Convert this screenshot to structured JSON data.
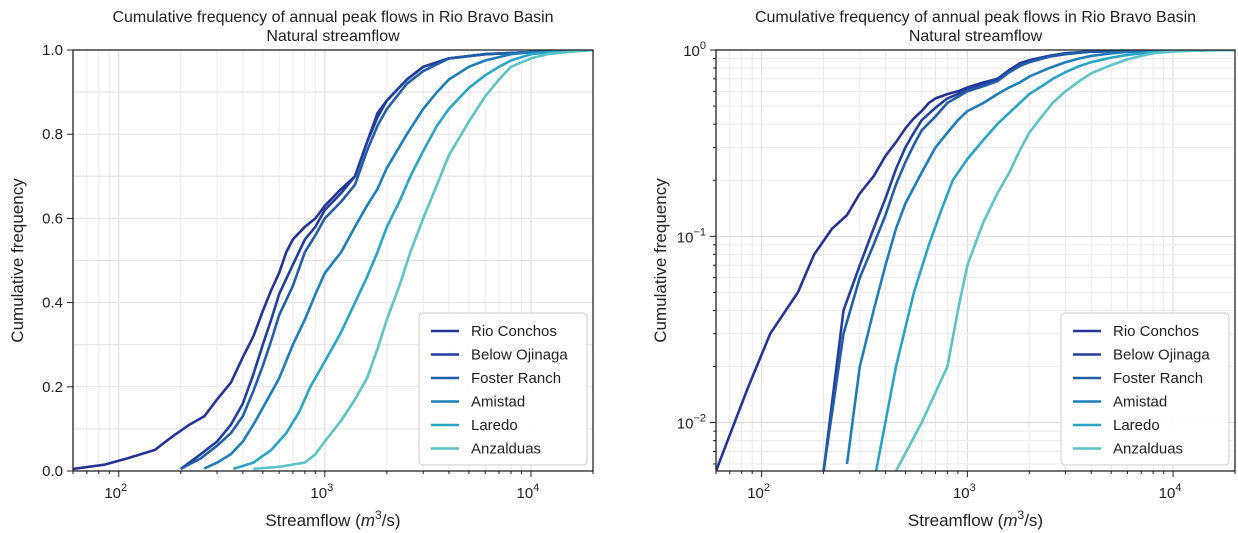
{
  "chart_data": [
    {
      "type": "line",
      "title": "Cumulative frequency of annual peak flows in Rio Bravo Basin",
      "subtitle": "Natural streamflow",
      "xlabel": "Streamflow (m³/s)",
      "ylabel": "Cumulative frequency",
      "xscale": "log",
      "yscale": "linear",
      "xlim": [
        60,
        20000
      ],
      "ylim": [
        0,
        1
      ],
      "grid": true,
      "legend_position": "bottom-right",
      "x_ticks": [
        {
          "base": "10",
          "exp": "2"
        },
        {
          "base": "10",
          "exp": "3"
        },
        {
          "base": "10",
          "exp": "4"
        }
      ],
      "y_ticks": [
        "0.0",
        "0.2",
        "0.4",
        "0.6",
        "0.8",
        "1.0"
      ],
      "series": [
        {
          "name": "Rio Conchos",
          "color": "#253494",
          "x": [
            60,
            85,
            110,
            150,
            180,
            220,
            260,
            300,
            350,
            400,
            450,
            500,
            550,
            600,
            650,
            700,
            800,
            900,
            1000,
            1200,
            1400,
            1600,
            1800,
            2000,
            2500,
            3000,
            4000,
            6000,
            10000,
            20000
          ],
          "y": [
            0.005,
            0.015,
            0.03,
            0.05,
            0.08,
            0.11,
            0.13,
            0.17,
            0.21,
            0.27,
            0.32,
            0.38,
            0.43,
            0.47,
            0.52,
            0.55,
            0.58,
            0.6,
            0.63,
            0.67,
            0.7,
            0.78,
            0.85,
            0.88,
            0.93,
            0.96,
            0.98,
            0.99,
            0.995,
            1.0
          ]
        },
        {
          "name": "Below Ojinaga",
          "color": "#233f9e",
          "x": [
            200,
            250,
            300,
            350,
            400,
            450,
            500,
            550,
            600,
            700,
            800,
            900,
            1000,
            1200,
            1400,
            1600,
            1800,
            2000,
            2500,
            3000,
            4000,
            6000,
            10000,
            20000
          ],
          "y": [
            0.005,
            0.04,
            0.07,
            0.11,
            0.16,
            0.23,
            0.3,
            0.36,
            0.42,
            0.49,
            0.55,
            0.58,
            0.62,
            0.66,
            0.7,
            0.78,
            0.84,
            0.88,
            0.93,
            0.96,
            0.98,
            0.99,
            0.995,
            1.0
          ]
        },
        {
          "name": "Foster Ranch",
          "color": "#225ea8",
          "x": [
            200,
            250,
            300,
            350,
            400,
            450,
            500,
            550,
            600,
            700,
            800,
            900,
            1000,
            1200,
            1400,
            1600,
            1800,
            2000,
            2500,
            3000,
            4000,
            6000,
            10000,
            20000
          ],
          "y": [
            0.005,
            0.03,
            0.06,
            0.09,
            0.13,
            0.19,
            0.25,
            0.31,
            0.37,
            0.44,
            0.52,
            0.56,
            0.6,
            0.64,
            0.68,
            0.76,
            0.82,
            0.86,
            0.92,
            0.95,
            0.98,
            0.99,
            0.995,
            1.0
          ]
        },
        {
          "name": "Amistad",
          "color": "#1d7eb9",
          "x": [
            260,
            300,
            350,
            400,
            450,
            500,
            600,
            700,
            800,
            900,
            1000,
            1200,
            1400,
            1600,
            1800,
            2000,
            2500,
            3000,
            3500,
            4000,
            5000,
            6000,
            8000,
            10000,
            20000
          ],
          "y": [
            0.006,
            0.02,
            0.04,
            0.07,
            0.11,
            0.15,
            0.22,
            0.3,
            0.36,
            0.42,
            0.47,
            0.52,
            0.58,
            0.63,
            0.67,
            0.72,
            0.8,
            0.86,
            0.9,
            0.93,
            0.96,
            0.975,
            0.99,
            0.995,
            1.0
          ]
        },
        {
          "name": "Laredo",
          "color": "#2aa4c6",
          "x": [
            360,
            450,
            550,
            650,
            750,
            850,
            1000,
            1200,
            1400,
            1600,
            1800,
            2000,
            2300,
            2600,
            3000,
            3500,
            4000,
            5000,
            6000,
            7000,
            8000,
            10000,
            13000,
            20000
          ],
          "y": [
            0.005,
            0.02,
            0.05,
            0.09,
            0.14,
            0.2,
            0.26,
            0.33,
            0.4,
            0.46,
            0.52,
            0.58,
            0.64,
            0.7,
            0.76,
            0.82,
            0.86,
            0.91,
            0.94,
            0.96,
            0.975,
            0.99,
            0.996,
            1.0
          ]
        },
        {
          "name": "Anzalduas",
          "color": "#5cc3c9",
          "x": [
            450,
            600,
            800,
            900,
            1000,
            1200,
            1400,
            1600,
            1800,
            2000,
            2300,
            2600,
            3000,
            3500,
            4000,
            5000,
            6000,
            7000,
            8000,
            10000,
            12000,
            15000,
            20000
          ],
          "y": [
            0.005,
            0.01,
            0.02,
            0.04,
            0.07,
            0.12,
            0.17,
            0.22,
            0.29,
            0.36,
            0.44,
            0.52,
            0.6,
            0.68,
            0.75,
            0.83,
            0.89,
            0.93,
            0.96,
            0.98,
            0.99,
            0.995,
            1.0
          ]
        }
      ]
    },
    {
      "type": "line",
      "title": "Cumulative frequency of annual peak flows in Rio Bravo Basin",
      "subtitle": "Natural streamflow",
      "xlabel": "Streamflow (m³/s)",
      "ylabel": "Cumulative frequency",
      "xscale": "log",
      "yscale": "log",
      "xlim": [
        60,
        20000
      ],
      "ylim": [
        0.0055,
        1
      ],
      "grid": true,
      "legend_position": "bottom-right",
      "x_ticks": [
        {
          "base": "10",
          "exp": "2"
        },
        {
          "base": "10",
          "exp": "3"
        },
        {
          "base": "10",
          "exp": "4"
        }
      ],
      "y_ticks": [
        {
          "base": "10",
          "exp": "0"
        },
        {
          "base": "10",
          "exp": "−1"
        },
        {
          "base": "10",
          "exp": "−2"
        }
      ],
      "series_ref": "same as left panel"
    }
  ],
  "xaxis_label_prefix": "Streamflow (",
  "xaxis_label_var": "m",
  "xaxis_label_sup": "3",
  "xaxis_label_suffix": "/s)"
}
